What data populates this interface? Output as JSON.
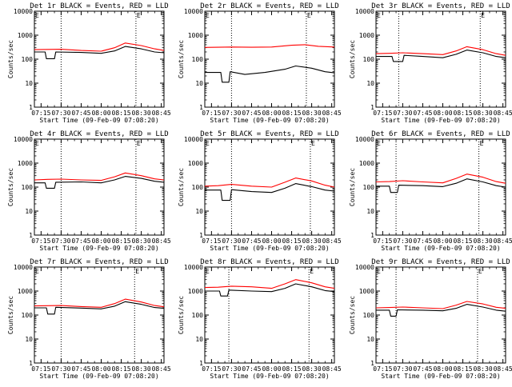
{
  "chart_data": [
    {
      "type": "line",
      "title": "Det 1r BLACK = Events, RED = LLD",
      "xlabel": "Start Time (09-Feb-09 07:08:20)",
      "ylabel": "Counts/sec",
      "yscale": "log",
      "ylim": [
        1,
        10000
      ],
      "xlim": [
        "07:10",
        "08:47"
      ],
      "xticks": [
        "07:15",
        "07:30",
        "07:45",
        "08:00",
        "08:15",
        "08:30",
        "08:45"
      ],
      "yticks": [
        "1",
        "10",
        "100",
        "1000",
        "10000"
      ],
      "marker_text": "E",
      "vlines": [
        "07:30",
        "08:26"
      ],
      "series": [
        {
          "color": "#000000",
          "x": [
            "07:10",
            "07:18",
            "07:19",
            "07:25",
            "07:26",
            "07:45",
            "08:00",
            "08:10",
            "08:18",
            "08:30",
            "08:40",
            "08:47"
          ],
          "values": [
            200,
            200,
            105,
            105,
            200,
            190,
            175,
            220,
            340,
            270,
            200,
            185
          ]
        },
        {
          "color": "#ff0000",
          "x": [
            "07:10",
            "07:20",
            "07:30",
            "07:45",
            "08:00",
            "08:10",
            "08:18",
            "08:30",
            "08:40",
            "08:47"
          ],
          "values": [
            250,
            255,
            260,
            230,
            215,
            300,
            470,
            370,
            270,
            230
          ]
        }
      ]
    },
    {
      "type": "line",
      "title": "Det 2r BLACK = Events, RED = LLD",
      "xlabel": "Start Time (09-Feb-09 07:08:20)",
      "ylabel": "Counts/sec",
      "yscale": "log",
      "ylim": [
        1,
        10000
      ],
      "xlim": [
        "07:10",
        "08:47"
      ],
      "xticks": [
        "07:15",
        "07:30",
        "07:45",
        "08:00",
        "08:15",
        "08:30",
        "08:45"
      ],
      "yticks": [
        "1",
        "10",
        "100",
        "1000",
        "10000"
      ],
      "marker_text": "E",
      "vlines": [
        "07:30",
        "08:26"
      ],
      "series": [
        {
          "color": "#000000",
          "x": [
            "07:10",
            "07:22",
            "07:23",
            "07:28",
            "07:29",
            "07:40",
            "07:55",
            "08:10",
            "08:18",
            "08:30",
            "08:40",
            "08:47"
          ],
          "values": [
            28,
            28,
            11,
            11,
            30,
            23,
            28,
            38,
            52,
            42,
            30,
            27
          ]
        },
        {
          "color": "#ff0000",
          "x": [
            "07:10",
            "07:30",
            "07:45",
            "08:00",
            "08:15",
            "08:25",
            "08:35",
            "08:47"
          ],
          "values": [
            310,
            320,
            315,
            320,
            380,
            400,
            345,
            320
          ]
        }
      ]
    },
    {
      "type": "line",
      "title": "Det 3r BLACK = Events, RED = LLD",
      "xlabel": "Start Time (09-Feb-09 07:08:20)",
      "ylabel": "Counts/sec",
      "yscale": "log",
      "ylim": [
        1,
        10000
      ],
      "xlim": [
        "07:10",
        "08:47"
      ],
      "xticks": [
        "07:15",
        "07:30",
        "07:45",
        "08:00",
        "08:15",
        "08:30",
        "08:45"
      ],
      "yticks": [
        "1",
        "10",
        "100",
        "1000",
        "10000"
      ],
      "marker_text": "E",
      "vlines": [
        "07:27",
        "08:28"
      ],
      "series": [
        {
          "color": "#000000",
          "x": [
            "07:10",
            "07:22",
            "07:23",
            "07:30",
            "07:31",
            "07:45",
            "08:00",
            "08:10",
            "08:18",
            "08:30",
            "08:40",
            "08:47"
          ],
          "values": [
            130,
            130,
            80,
            80,
            145,
            130,
            115,
            160,
            240,
            185,
            130,
            115
          ]
        },
        {
          "color": "#ff0000",
          "x": [
            "07:10",
            "07:20",
            "07:30",
            "07:45",
            "08:00",
            "08:10",
            "08:18",
            "08:30",
            "08:40",
            "08:47"
          ],
          "values": [
            170,
            175,
            185,
            170,
            155,
            220,
            330,
            250,
            170,
            145
          ]
        }
      ]
    },
    {
      "type": "line",
      "title": "Det 4r BLACK = Events, RED = LLD",
      "xlabel": "Start Time (09-Feb-09 07:08:20)",
      "ylabel": "Counts/sec",
      "yscale": "log",
      "ylim": [
        1,
        10000
      ],
      "xlim": [
        "07:10",
        "08:47"
      ],
      "xticks": [
        "07:15",
        "07:30",
        "07:45",
        "08:00",
        "08:15",
        "08:30",
        "08:45"
      ],
      "yticks": [
        "1",
        "10",
        "100",
        "1000",
        "10000"
      ],
      "marker_text": "E",
      "vlines": [
        "07:30",
        "08:26"
      ],
      "series": [
        {
          "color": "#000000",
          "x": [
            "07:10",
            "07:18",
            "07:19",
            "07:25",
            "07:26",
            "07:45",
            "08:00",
            "08:10",
            "08:18",
            "08:30",
            "08:40",
            "08:47"
          ],
          "values": [
            150,
            150,
            90,
            90,
            160,
            165,
            150,
            200,
            280,
            230,
            175,
            160
          ]
        },
        {
          "color": "#ff0000",
          "x": [
            "07:10",
            "07:20",
            "07:30",
            "07:45",
            "08:00",
            "08:10",
            "08:18",
            "08:30",
            "08:40",
            "08:47"
          ],
          "values": [
            200,
            210,
            215,
            200,
            190,
            270,
            390,
            300,
            220,
            200
          ]
        }
      ]
    },
    {
      "type": "line",
      "title": "Det 5r BLACK = Events, RED = LLD",
      "xlabel": "Start Time (09-Feb-09 07:08:20)",
      "ylabel": "Counts/sec",
      "yscale": "log",
      "ylim": [
        1,
        10000
      ],
      "xlim": [
        "07:10",
        "08:47"
      ],
      "xticks": [
        "07:15",
        "07:30",
        "07:45",
        "08:00",
        "08:15",
        "08:30",
        "08:45"
      ],
      "yticks": [
        "1",
        "10",
        "100",
        "1000",
        "10000"
      ],
      "marker_text": "E",
      "vlines": [
        "07:30",
        "08:29"
      ],
      "series": [
        {
          "color": "#000000",
          "x": [
            "07:10",
            "07:22",
            "07:23",
            "07:29",
            "07:30",
            "07:45",
            "08:00",
            "08:10",
            "08:18",
            "08:30",
            "08:40",
            "08:47"
          ],
          "values": [
            75,
            75,
            28,
            28,
            78,
            65,
            60,
            90,
            140,
            105,
            75,
            68
          ]
        },
        {
          "color": "#ff0000",
          "x": [
            "07:10",
            "07:20",
            "07:30",
            "07:45",
            "08:00",
            "08:10",
            "08:18",
            "08:30",
            "08:40",
            "08:47"
          ],
          "values": [
            110,
            115,
            130,
            110,
            100,
            160,
            240,
            180,
            120,
            100
          ]
        }
      ]
    },
    {
      "type": "line",
      "title": "Det 6r BLACK = Events, RED = LLD",
      "xlabel": "Start Time (09-Feb-09 07:08:20)",
      "ylabel": "Counts/sec",
      "yscale": "log",
      "ylim": [
        1,
        10000
      ],
      "xlim": [
        "07:10",
        "08:47"
      ],
      "xticks": [
        "07:15",
        "07:30",
        "07:45",
        "08:00",
        "08:15",
        "08:30",
        "08:45"
      ],
      "yticks": [
        "1",
        "10",
        "100",
        "1000",
        "10000"
      ],
      "marker_text": "E",
      "vlines": [
        "07:25",
        "08:27"
      ],
      "series": [
        {
          "color": "#000000",
          "x": [
            "07:10",
            "07:20",
            "07:21",
            "07:26",
            "07:27",
            "07:45",
            "08:00",
            "08:10",
            "08:18",
            "08:30",
            "08:40",
            "08:47"
          ],
          "values": [
            110,
            110,
            60,
            60,
            120,
            115,
            105,
            145,
            220,
            165,
            115,
            100
          ]
        },
        {
          "color": "#ff0000",
          "x": [
            "07:10",
            "07:20",
            "07:30",
            "07:45",
            "08:00",
            "08:10",
            "08:18",
            "08:30",
            "08:40",
            "08:47"
          ],
          "values": [
            165,
            170,
            185,
            165,
            150,
            230,
            350,
            260,
            170,
            145
          ]
        }
      ]
    },
    {
      "type": "line",
      "title": "Det 7r BLACK = Events, RED = LLD",
      "xlabel": "Start Time (09-Feb-09 07:08:20)",
      "ylabel": "Counts/sec",
      "yscale": "log",
      "ylim": [
        1,
        10000
      ],
      "xlim": [
        "07:10",
        "08:47"
      ],
      "xticks": [
        "07:15",
        "07:30",
        "07:45",
        "08:00",
        "08:15",
        "08:30",
        "08:45"
      ],
      "yticks": [
        "1",
        "10",
        "100",
        "1000",
        "10000"
      ],
      "marker_text": "E",
      "vlines": [
        "07:30",
        "08:25"
      ],
      "series": [
        {
          "color": "#000000",
          "x": [
            "07:10",
            "07:19",
            "07:20",
            "07:25",
            "07:26",
            "07:45",
            "08:00",
            "08:10",
            "08:18",
            "08:30",
            "08:40",
            "08:47"
          ],
          "values": [
            200,
            200,
            110,
            110,
            210,
            195,
            180,
            235,
            360,
            280,
            205,
            190
          ]
        },
        {
          "color": "#ff0000",
          "x": [
            "07:10",
            "07:20",
            "07:30",
            "07:45",
            "08:00",
            "08:10",
            "08:18",
            "08:30",
            "08:40",
            "08:47"
          ],
          "values": [
            240,
            245,
            250,
            225,
            210,
            300,
            460,
            350,
            250,
            220
          ]
        }
      ]
    },
    {
      "type": "line",
      "title": "Det 8r BLACK = Events, RED = LLD",
      "xlabel": "Start Time (09-Feb-09 07:08:20)",
      "ylabel": "Counts/sec",
      "yscale": "log",
      "ylim": [
        1,
        10000
      ],
      "xlim": [
        "07:10",
        "08:47"
      ],
      "xticks": [
        "07:15",
        "07:30",
        "07:45",
        "08:00",
        "08:15",
        "08:30",
        "08:45"
      ],
      "yticks": [
        "1",
        "10",
        "100",
        "1000",
        "10000"
      ],
      "marker_text": "E",
      "vlines": [
        "07:28",
        "08:28"
      ],
      "series": [
        {
          "color": "#000000",
          "x": [
            "07:10",
            "07:21",
            "07:22",
            "07:27",
            "07:28",
            "07:45",
            "08:00",
            "08:10",
            "08:18",
            "08:30",
            "08:40",
            "08:47"
          ],
          "values": [
            1000,
            1000,
            620,
            620,
            1100,
            1000,
            950,
            1300,
            2000,
            1500,
            1050,
            950
          ]
        },
        {
          "color": "#ff0000",
          "x": [
            "07:10",
            "07:20",
            "07:30",
            "07:45",
            "08:00",
            "08:10",
            "08:18",
            "08:30",
            "08:40",
            "08:47"
          ],
          "values": [
            1400,
            1450,
            1600,
            1500,
            1300,
            2000,
            3000,
            2200,
            1500,
            1300
          ]
        }
      ]
    },
    {
      "type": "line",
      "title": "Det 9r BLACK = Events, RED = LLD",
      "xlabel": "Start Time (09-Feb-09 07:08:20)",
      "ylabel": "Counts/sec",
      "yscale": "log",
      "ylim": [
        1,
        10000
      ],
      "xlim": [
        "07:10",
        "08:47"
      ],
      "xticks": [
        "07:15",
        "07:30",
        "07:45",
        "08:00",
        "08:15",
        "08:30",
        "08:45"
      ],
      "yticks": [
        "1",
        "10",
        "100",
        "1000",
        "10000"
      ],
      "marker_text": "E",
      "vlines": [
        "07:25",
        "08:26"
      ],
      "series": [
        {
          "color": "#000000",
          "x": [
            "07:10",
            "07:20",
            "07:21",
            "07:25",
            "07:26",
            "07:45",
            "08:00",
            "08:10",
            "08:18",
            "08:30",
            "08:40",
            "08:47"
          ],
          "values": [
            160,
            160,
            90,
            90,
            165,
            160,
            150,
            190,
            280,
            215,
            160,
            145
          ]
        },
        {
          "color": "#ff0000",
          "x": [
            "07:10",
            "07:20",
            "07:30",
            "07:45",
            "08:00",
            "08:10",
            "08:18",
            "08:30",
            "08:40",
            "08:47"
          ],
          "values": [
            200,
            205,
            215,
            200,
            185,
            260,
            370,
            290,
            210,
            190
          ]
        }
      ]
    }
  ]
}
